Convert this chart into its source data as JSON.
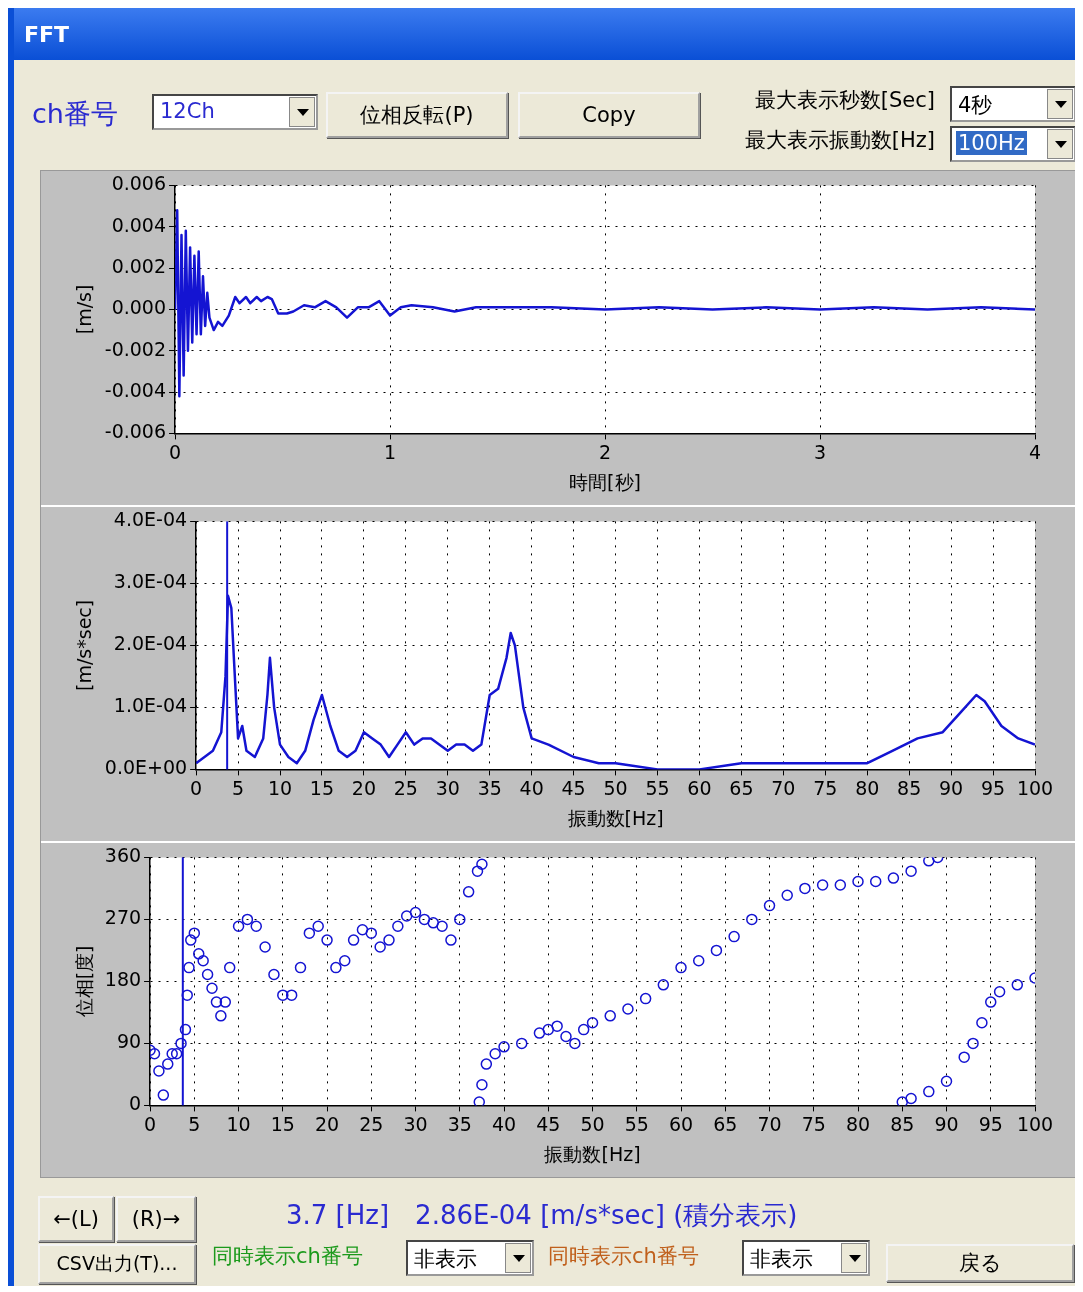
{
  "chart_data": [
    {
      "type": "line",
      "title": "FFT",
      "annotations": [
        "ch番号",
        "12Ch",
        "位相反転(P)",
        "Copy",
        "最大表示秒数[Sec]",
        "4秒",
        "最大表示振動数[Hz]",
        "100Hz"
      ],
      "xlabel": "時間[秒]",
      "ylabel": "[m/s]",
      "xlim": [
        0,
        4
      ],
      "xticks": [
        0,
        1,
        2,
        3,
        4
      ],
      "ylim": [
        -0.006,
        0.006
      ],
      "yticks": [
        {
          "value": -0.006,
          "label": "-0.006"
        },
        {
          "value": -0.004,
          "label": "-0.004"
        },
        {
          "value": -0.002,
          "label": "-0.002"
        },
        {
          "value": 0,
          "label": "0.000"
        },
        {
          "value": 0.002,
          "label": "0.002"
        },
        {
          "value": 0.004,
          "label": "0.004"
        },
        {
          "value": 0.006,
          "label": "0.006"
        }
      ],
      "grid": true,
      "series": [
        {
          "color": "#1414d2",
          "x": [
            0,
            0.01,
            0.02,
            0.03,
            0.04,
            0.05,
            0.06,
            0.07,
            0.08,
            0.09,
            0.1,
            0.11,
            0.12,
            0.13,
            0.14,
            0.15,
            0.16,
            0.18,
            0.2,
            0.22,
            0.25,
            0.28,
            0.3,
            0.33,
            0.35,
            0.38,
            0.4,
            0.43,
            0.45,
            0.48,
            0.52,
            0.55,
            0.6,
            0.65,
            0.7,
            0.75,
            0.8,
            0.85,
            0.9,
            0.95,
            1.0,
            1.05,
            1.1,
            1.2,
            1.3,
            1.4,
            1.5,
            1.75,
            2.0,
            2.25,
            2.5,
            2.75,
            3.0,
            3.25,
            3.5,
            3.75,
            4.0
          ],
          "values": [
            0,
            0.0048,
            -0.0042,
            0.0036,
            -0.0032,
            0.0038,
            -0.002,
            0.003,
            -0.0016,
            0.0026,
            -0.0012,
            0.0028,
            -0.0012,
            0.0016,
            -0.0008,
            0.0008,
            -0.0004,
            -0.001,
            -0.0006,
            -0.0008,
            -0.0003,
            0.0006,
            0.0003,
            0.0006,
            0.0003,
            0.0006,
            0.0004,
            0.0006,
            0.0005,
            -0.0002,
            -0.0002,
            -0.0001,
            0.0002,
            0.0001,
            0.0004,
            0.0001,
            -0.0004,
            0.0001,
            0.0001,
            0.0004,
            -0.0003,
            0.0001,
            0.0002,
            0.0001,
            -0.0001,
            0.0001,
            0.0001,
            0.0001,
            0,
            0.0001,
            0,
            0.0001,
            0,
            0.0001,
            0,
            0.0001,
            0
          ]
        }
      ]
    },
    {
      "type": "line",
      "xlabel": "振動数[Hz]",
      "ylabel": "[m/s*sec]",
      "xlim": [
        0,
        100
      ],
      "xticks": [
        0,
        5,
        10,
        15,
        20,
        25,
        30,
        35,
        40,
        45,
        50,
        55,
        60,
        65,
        70,
        75,
        80,
        85,
        90,
        95,
        100
      ],
      "ylim": [
        0,
        0.0004
      ],
      "yticks": [
        {
          "value": 0,
          "label": "0.0E+00"
        },
        {
          "value": 0.0001,
          "label": "1.0E-04"
        },
        {
          "value": 0.0002,
          "label": "2.0E-04"
        },
        {
          "value": 0.0003,
          "label": "3.0E-04"
        },
        {
          "value": 0.0004,
          "label": "4.0E-04"
        }
      ],
      "grid": true,
      "ref_lines": [
        {
          "axis": "x",
          "value": 3.7,
          "color": "#1414d2"
        }
      ],
      "series": [
        {
          "color": "#1414d2",
          "x": [
            0,
            1,
            2,
            3,
            3.5,
            3.8,
            4.2,
            4.5,
            5,
            5.5,
            6,
            7,
            8,
            8.5,
            8.8,
            9.3,
            10,
            11,
            12,
            13,
            14,
            15,
            16,
            17,
            18,
            19,
            20,
            21,
            22,
            23,
            24,
            25,
            26,
            27,
            28,
            30,
            31,
            32,
            33,
            34,
            35,
            36,
            37,
            37.5,
            38,
            39,
            40,
            42,
            45,
            48,
            50,
            55,
            60,
            65,
            70,
            75,
            80,
            83,
            86,
            89,
            91,
            93,
            94,
            96,
            98,
            100
          ],
          "values": [
            1e-05,
            2e-05,
            3e-05,
            6e-05,
            0.00015,
            0.00028,
            0.00026,
            0.00018,
            5e-05,
            7e-05,
            3e-05,
            2e-05,
            5e-05,
            0.00012,
            0.00018,
            0.0001,
            4e-05,
            2e-05,
            1e-05,
            3e-05,
            8e-05,
            0.00012,
            7e-05,
            3e-05,
            2e-05,
            3e-05,
            6e-05,
            5e-05,
            4e-05,
            2e-05,
            4e-05,
            6e-05,
            4e-05,
            5e-05,
            5e-05,
            3e-05,
            4e-05,
            4e-05,
            3e-05,
            4e-05,
            0.00012,
            0.00013,
            0.00018,
            0.00022,
            0.0002,
            0.0001,
            5e-05,
            4e-05,
            2e-05,
            1e-05,
            1e-05,
            0,
            0,
            1e-05,
            1e-05,
            1e-05,
            1e-05,
            3e-05,
            5e-05,
            6e-05,
            9e-05,
            0.00012,
            0.00011,
            7e-05,
            5e-05,
            4e-05
          ]
        }
      ]
    },
    {
      "type": "scatter",
      "xlabel": "振動数[Hz]",
      "ylabel": "位相[度]",
      "xlim": [
        0,
        100
      ],
      "xticks": [
        0,
        5,
        10,
        15,
        20,
        25,
        30,
        35,
        40,
        45,
        50,
        55,
        60,
        65,
        70,
        75,
        80,
        85,
        90,
        95,
        100
      ],
      "ylim": [
        0,
        360
      ],
      "yticks": [
        0,
        90,
        180,
        270,
        360
      ],
      "grid": true,
      "marker": "circle",
      "ref_lines": [
        {
          "axis": "x",
          "value": 3.7,
          "color": "#1414d2"
        }
      ],
      "annotations": [
        "←(L)",
        "(R)→",
        "CSV出力(T)...",
        "3.7 [Hz]　2.86E-04 [m/s*sec] (積分表示)",
        "同時表示ch番号",
        "非表示",
        "同時表示ch番号",
        "非表示",
        "戻る"
      ],
      "series": [
        {
          "color": "#1414d2",
          "x": [
            0,
            0.5,
            1,
            1.5,
            2,
            2.5,
            3,
            3.5,
            4,
            4.2,
            4.4,
            4.6,
            5,
            5.5,
            6,
            6.5,
            7,
            7.5,
            8,
            8.5,
            9,
            10,
            11,
            12,
            13,
            14,
            15,
            16,
            17,
            18,
            19,
            20,
            21,
            22,
            23,
            24,
            25,
            26,
            27,
            28,
            29,
            30,
            31,
            32,
            33,
            34,
            35,
            36,
            37,
            37.5,
            37.2,
            37.5,
            38,
            39,
            40,
            42,
            44,
            45,
            46,
            47,
            48,
            49,
            50,
            52,
            54,
            56,
            58,
            60,
            62,
            64,
            66,
            68,
            70,
            72,
            74,
            76,
            78,
            80,
            82,
            84,
            86,
            88,
            89,
            85,
            86,
            88,
            90,
            92,
            93,
            94,
            95,
            96,
            98,
            100
          ],
          "values": [
            80,
            75,
            50,
            15,
            60,
            75,
            75,
            90,
            110,
            160,
            200,
            240,
            250,
            220,
            210,
            190,
            170,
            150,
            130,
            150,
            200,
            260,
            270,
            260,
            230,
            190,
            160,
            160,
            200,
            250,
            260,
            240,
            200,
            210,
            240,
            255,
            250,
            230,
            240,
            260,
            275,
            280,
            270,
            265,
            260,
            240,
            270,
            310,
            340,
            350,
            5,
            30,
            60,
            75,
            85,
            90,
            105,
            110,
            115,
            100,
            90,
            110,
            120,
            130,
            140,
            155,
            175,
            200,
            210,
            225,
            245,
            270,
            290,
            305,
            315,
            320,
            320,
            325,
            325,
            330,
            340,
            355,
            360,
            5,
            10,
            20,
            35,
            70,
            90,
            120,
            150,
            165,
            175,
            185
          ]
        }
      ]
    }
  ]
}
